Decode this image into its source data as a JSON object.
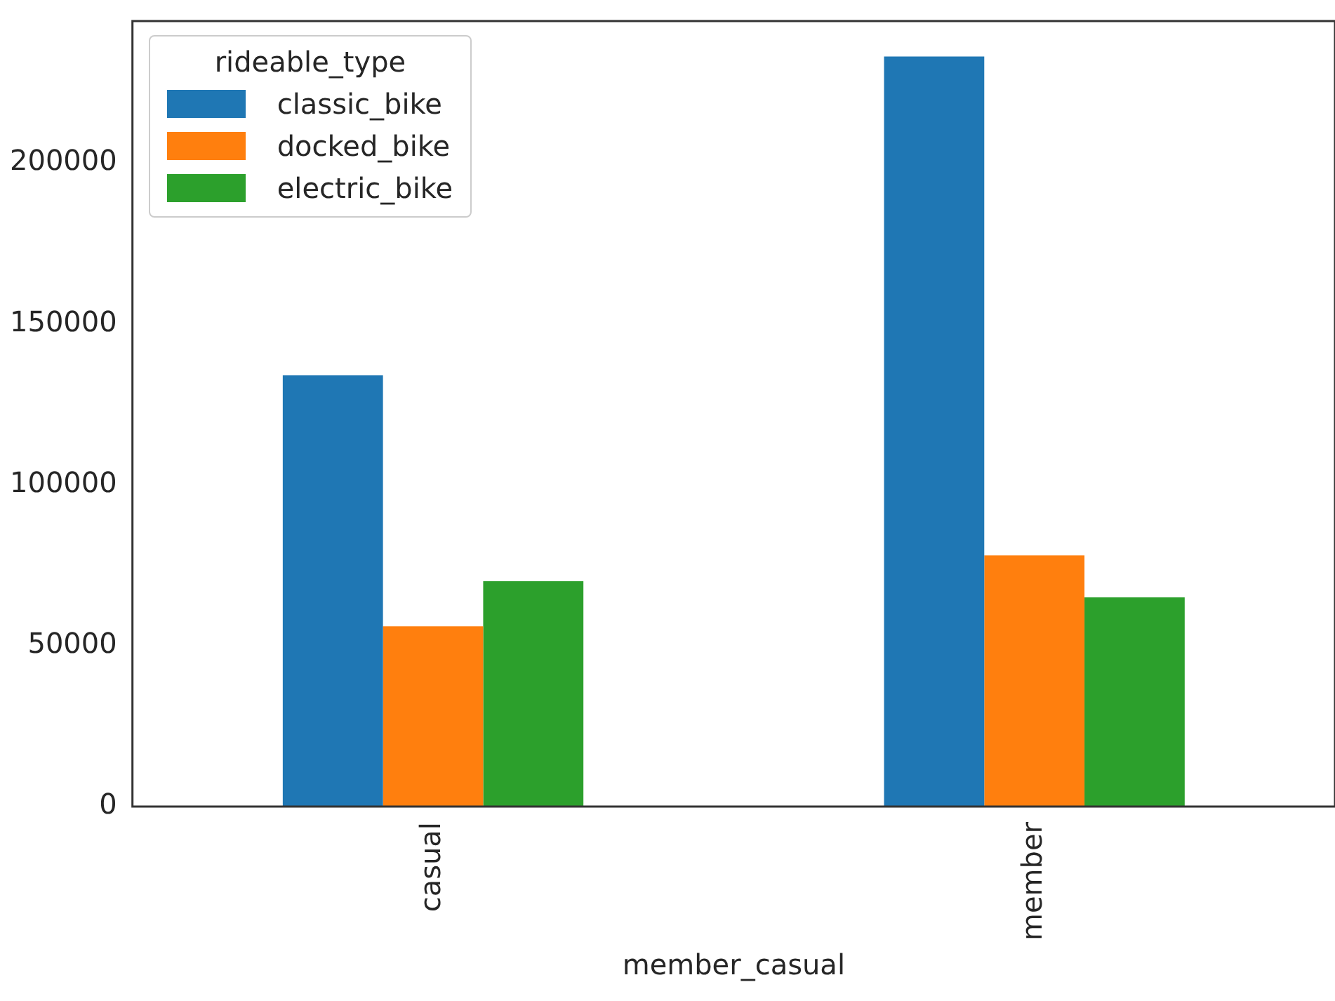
{
  "chart_data": {
    "type": "bar",
    "xlabel": "member_casual",
    "legend_title": "rideable_type",
    "legend": "top left",
    "grid": false,
    "categories": [
      "casual",
      "member"
    ],
    "series": [
      {
        "name": "classic_bike",
        "color": "#1f77b4",
        "values": [
          134000,
          233000
        ]
      },
      {
        "name": "docked_bike",
        "color": "#ff7f0e",
        "values": [
          56000,
          78000
        ]
      },
      {
        "name": "electric_bike",
        "color": "#2ca02c",
        "values": [
          70000,
          65000
        ]
      }
    ],
    "ylim": [
      0,
      244000
    ],
    "yticks": [
      0,
      50000,
      100000,
      150000,
      200000
    ]
  }
}
